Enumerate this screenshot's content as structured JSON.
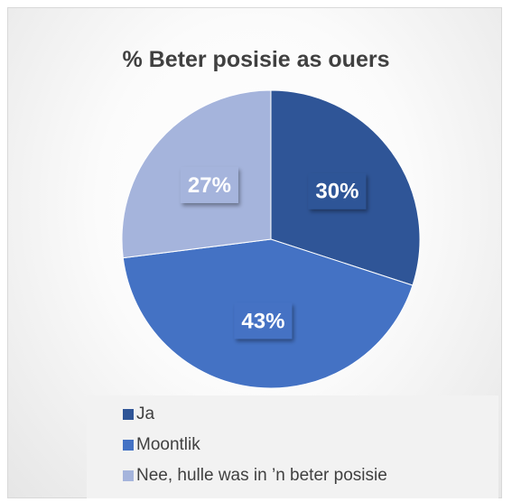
{
  "chart_data": {
    "type": "pie",
    "title": "% Beter posisie as ouers",
    "categories": [
      "Ja",
      "Moontlik",
      "Nee, hulle was in ’n beter posisie"
    ],
    "values": [
      30,
      43,
      27
    ],
    "labels": [
      "30%",
      "43%",
      "27%"
    ],
    "colors": [
      "#2f5597",
      "#4472c4",
      "#a5b4dc"
    ],
    "legend_position": "bottom"
  }
}
